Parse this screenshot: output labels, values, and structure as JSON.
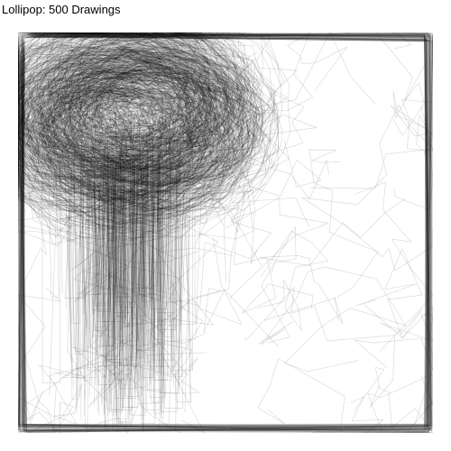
{
  "title": "Lollipop: 500 Drawings",
  "drawing": {
    "subject": "lollipop",
    "count": 500,
    "stroke_color": "#000000",
    "background": "#ffffff"
  }
}
